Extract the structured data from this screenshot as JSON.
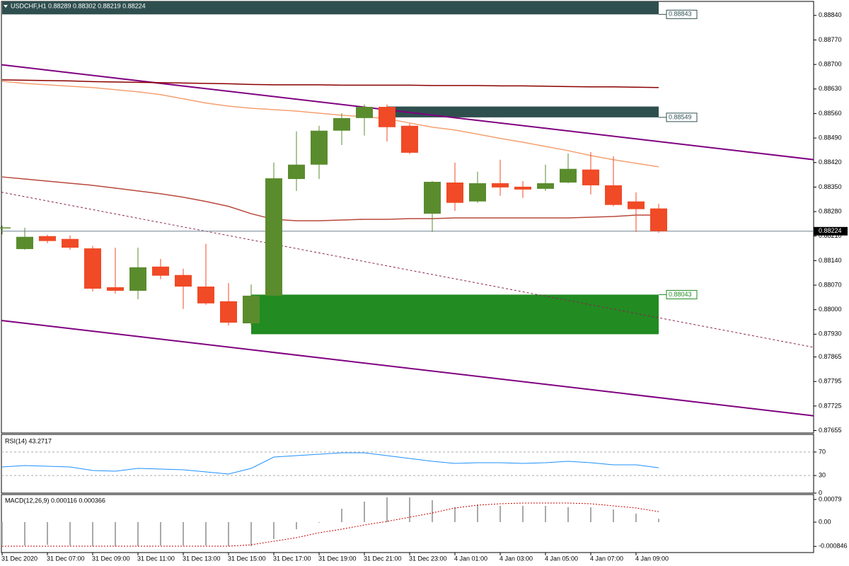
{
  "chart_data": [
    {
      "type": "candlestick",
      "title": "USDCHF,H1 0.88289 0.88302 0.88219 0.88224",
      "categories": [
        "31 Dec 2020",
        null,
        "31 Dec 07:00",
        null,
        "31 Dec 09:00",
        null,
        "31 Dec 11:00",
        null,
        "31 Dec 13:00",
        null,
        "31 Dec 15:00",
        null,
        "31 Dec 17:00",
        null,
        "31 Dec 19:00",
        null,
        "31 Dec 21:00",
        null,
        "31 Dec 23:00",
        null,
        "4 Jan 01:00",
        null,
        "4 Jan 03:00",
        null,
        "4 Jan 05:00",
        null,
        "4 Jan 07:00",
        null,
        "4 Jan 09:00",
        null
      ],
      "open": [
        0.88232,
        0.88173,
        0.8821,
        0.88202,
        0.88175,
        0.88064,
        0.88054,
        0.88123,
        0.88099,
        0.88066,
        0.88024,
        0.87961,
        0.8804,
        0.88373,
        0.88414,
        0.88511,
        0.88547,
        0.88579,
        0.88525,
        0.88274,
        0.88363,
        0.88309,
        0.88361,
        0.88351,
        0.88345,
        0.88363,
        0.884,
        0.88355,
        0.88309,
        0.88289
      ],
      "high": [
        0.8824,
        0.88234,
        0.88214,
        0.88212,
        0.88182,
        0.88177,
        0.88177,
        0.88145,
        0.88117,
        0.88188,
        0.88076,
        0.88072,
        0.8842,
        0.88509,
        0.88525,
        0.88561,
        0.88586,
        0.88586,
        0.88531,
        0.88367,
        0.8842,
        0.88394,
        0.88428,
        0.88367,
        0.88414,
        0.88446,
        0.8845,
        0.88438,
        0.88335,
        0.88302
      ],
      "low": [
        0.88215,
        0.88171,
        0.8819,
        0.88171,
        0.88052,
        0.88046,
        0.8803,
        0.88087,
        0.88002,
        0.88014,
        0.87955,
        0.87955,
        0.88038,
        0.88339,
        0.88373,
        0.8847,
        0.88497,
        0.8848,
        0.88444,
        0.88222,
        0.88282,
        0.88305,
        0.88325,
        0.88319,
        0.88339,
        0.88361,
        0.88329,
        0.88295,
        0.88222,
        0.88219
      ],
      "close": [
        0.88235,
        0.88208,
        0.88196,
        0.88177,
        0.8806,
        0.88054,
        0.88121,
        0.88097,
        0.88066,
        0.88018,
        0.87963,
        0.8804,
        0.88375,
        0.88414,
        0.88511,
        0.88547,
        0.88579,
        0.88521,
        0.88448,
        0.88365,
        0.88305,
        0.88361,
        0.88349,
        0.88343,
        0.88361,
        0.88402,
        0.88355,
        0.88299,
        0.88287,
        0.88224
      ],
      "up_color": "#5a8c2e",
      "down_color": "#f04a26",
      "ylim": [
        0.87648,
        0.8888
      ],
      "yticks": [
        {
          "value": 0.8884,
          "label": "0.88840"
        },
        {
          "value": 0.8877,
          "label": "0.88770"
        },
        {
          "value": 0.887,
          "label": "0.88700"
        },
        {
          "value": 0.8863,
          "label": "0.88630"
        },
        {
          "value": 0.8856,
          "label": "0.88560"
        },
        {
          "value": 0.8849,
          "label": "0.88490"
        },
        {
          "value": 0.8842,
          "label": "0.88420"
        },
        {
          "value": 0.8835,
          "label": "0.88350"
        },
        {
          "value": 0.8828,
          "label": "0.88280"
        },
        {
          "value": 0.8821,
          "label": "0.88210"
        },
        {
          "value": 0.8814,
          "label": "0.88140"
        },
        {
          "value": 0.8807,
          "label": "0.88070"
        },
        {
          "value": 0.88,
          "label": "0.88000"
        },
        {
          "value": 0.8793,
          "label": "0.87930"
        },
        {
          "value": 0.87865,
          "label": "0.87865"
        },
        {
          "value": 0.87795,
          "label": "0.87795"
        },
        {
          "value": 0.87725,
          "label": "0.87725"
        },
        {
          "value": 0.87655,
          "label": "0.87655"
        }
      ],
      "zones": [
        {
          "x": [
            0,
            29
          ],
          "price": 0.88843,
          "edge": 0.8888,
          "label": "0.88843",
          "color": "#2f4f4f"
        },
        {
          "x": [
            17,
            29
          ],
          "price": 0.88549,
          "edge": 0.8858,
          "label": "0.88549",
          "color": "#2f4f4f"
        },
        {
          "x": [
            11,
            29
          ],
          "price": 0.88043,
          "edge": 0.8793,
          "label": "0.88043",
          "color": "#228b22"
        }
      ],
      "last_price": {
        "value": 0.88224,
        "label": "0.88224"
      },
      "moving_averages": [
        {
          "color": "#8b0000",
          "values": [
            0.88656,
            0.88655,
            0.88654,
            0.88653,
            0.88651,
            0.8865,
            0.88649,
            0.88648,
            0.88647,
            0.88646,
            0.88645,
            0.88643,
            0.88642,
            0.88642,
            0.88642,
            0.88641,
            0.88641,
            0.88641,
            0.88641,
            0.8864,
            0.8864,
            0.8864,
            0.88639,
            0.88639,
            0.88638,
            0.88637,
            0.88636,
            0.88636,
            0.88635,
            0.88634
          ]
        },
        {
          "color": "#f4a070",
          "values": [
            0.88652,
            0.88646,
            0.88642,
            0.88638,
            0.88634,
            0.88628,
            0.88622,
            0.88614,
            0.88602,
            0.8859,
            0.88581,
            0.88575,
            0.88571,
            0.88567,
            0.88561,
            0.88555,
            0.88551,
            0.88545,
            0.88533,
            0.88521,
            0.88513,
            0.88501,
            0.88489,
            0.88478,
            0.88466,
            0.88454,
            0.8844,
            0.88428,
            0.88418,
            0.88408
          ]
        },
        {
          "color": "#b8493c",
          "values": [
            0.88379,
            0.88373,
            0.88367,
            0.88361,
            0.88355,
            0.88347,
            0.88339,
            0.88331,
            0.88321,
            0.88309,
            0.88295,
            0.88274,
            0.88258,
            0.88254,
            0.88254,
            0.88256,
            0.88258,
            0.88258,
            0.8826,
            0.8826,
            0.88262,
            0.88262,
            0.88262,
            0.88262,
            0.88262,
            0.88262,
            0.88264,
            0.88266,
            0.8827,
            0.8827
          ]
        }
      ],
      "trendlines": [
        {
          "color": "#800080",
          "dashed": false,
          "x": [
            0,
            29
          ],
          "values": [
            0.88699,
            0.8848
          ]
        },
        {
          "color": "#800080",
          "dashed": false,
          "x": [
            0,
            29
          ],
          "values": [
            0.87969,
            0.87749
          ]
        },
        {
          "color": "#8b2252",
          "dashed": true,
          "x": [
            0,
            29
          ],
          "values": [
            0.88335,
            0.87977
          ]
        }
      ]
    },
    {
      "type": "line",
      "title": "RSI(14) 43.2717",
      "series": [
        {
          "color": "#1e90ff",
          "values": [
            44.6,
            47.0,
            45.8,
            44.6,
            38.6,
            37.3,
            42.2,
            41.0,
            39.8,
            36.1,
            32.5,
            42.2,
            61.4,
            63.9,
            66.3,
            68.7,
            68.7,
            63.9,
            59.0,
            54.2,
            50.6,
            51.8,
            51.8,
            50.6,
            51.8,
            54.2,
            51.8,
            48.2,
            48.2,
            43.2717
          ]
        }
      ],
      "ylim": [
        0,
        100
      ],
      "yticks": [
        70,
        30,
        0
      ],
      "levels": [
        70,
        30
      ]
    },
    {
      "type": "macd",
      "title": "MACD(12,26,9) 0.000116 0.000366",
      "histogram": {
        "color": "#a9a9a9",
        "values": [
          -0.00079,
          -0.000815,
          -0.00079,
          -0.000815,
          -0.000839,
          -0.000839,
          -0.000839,
          -0.000815,
          -0.000815,
          -0.000815,
          -0.000839,
          -0.000839,
          -0.000592,
          -0.000247,
          -2e-05,
          0.000469,
          0.000716,
          0.000864,
          0.000864,
          0.000765,
          0.000518,
          0.000617,
          0.000568,
          0.000568,
          0.000568,
          0.000518,
          0.000518,
          0.000444,
          0.000296,
          0.000116
        ]
      },
      "signal": {
        "color": "#cc0000",
        "values": [
          -0.000839,
          -0.000839,
          -0.000839,
          -0.000839,
          -0.000839,
          -0.000839,
          -0.000839,
          -0.000839,
          -0.000839,
          -0.000839,
          -0.000839,
          -0.00079,
          -0.000667,
          -0.000543,
          -0.00037,
          -0.000247,
          -9.9e-05,
          2.5e-05,
          0.000173,
          0.000321,
          0.000494,
          0.000592,
          0.000642,
          0.000667,
          0.000667,
          0.000667,
          0.000642,
          0.000568,
          0.000494,
          0.000366
        ]
      },
      "ylim": [
        -0.001062,
        0.000963
      ],
      "yticks": [
        0.00079,
        {
          "value": 0,
          "label": "0.00"
        },
        -0.000846
      ]
    }
  ]
}
